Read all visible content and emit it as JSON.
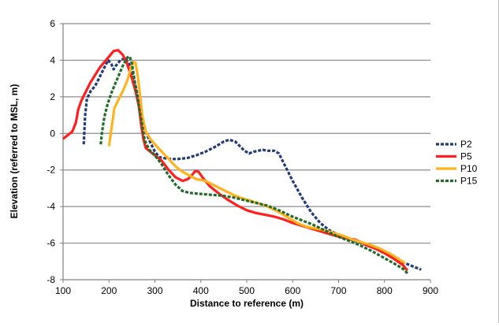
{
  "chart_data": {
    "type": "line",
    "title": "",
    "xlabel": "Distance to reference (m)",
    "ylabel": "Elevation (referred to MSL, m)",
    "xlim": [
      100,
      900
    ],
    "ylim": [
      -8,
      6
    ],
    "x_ticks": [
      "100",
      "200",
      "300",
      "400",
      "500",
      "600",
      "700",
      "800",
      "900"
    ],
    "y_ticks": [
      "-8",
      "-6",
      "-4",
      "-2",
      "0",
      "2",
      "4",
      "6"
    ],
    "grid": "horizontal",
    "legend_position": "right",
    "series": [
      {
        "name": "P2",
        "color": "#1f3a7a",
        "dash": "dashed",
        "points": [
          [
            145,
            -0.6
          ],
          [
            148,
            1.0
          ],
          [
            152,
            1.9
          ],
          [
            160,
            2.3
          ],
          [
            170,
            2.6
          ],
          [
            180,
            3.1
          ],
          [
            190,
            3.6
          ],
          [
            198,
            4.0
          ],
          [
            205,
            3.8
          ],
          [
            210,
            3.5
          ],
          [
            215,
            3.7
          ],
          [
            225,
            4.0
          ],
          [
            235,
            4.1
          ],
          [
            242,
            3.9
          ],
          [
            250,
            3.4
          ],
          [
            258,
            2.6
          ],
          [
            265,
            1.7
          ],
          [
            272,
            0.9
          ],
          [
            280,
            0.1
          ],
          [
            290,
            -0.5
          ],
          [
            300,
            -1.0
          ],
          [
            310,
            -1.3
          ],
          [
            330,
            -1.4
          ],
          [
            350,
            -1.4
          ],
          [
            370,
            -1.35
          ],
          [
            390,
            -1.2
          ],
          [
            410,
            -1.0
          ],
          [
            430,
            -0.75
          ],
          [
            450,
            -0.45
          ],
          [
            462,
            -0.35
          ],
          [
            475,
            -0.45
          ],
          [
            485,
            -0.7
          ],
          [
            495,
            -0.95
          ],
          [
            505,
            -1.1
          ],
          [
            515,
            -1.0
          ],
          [
            525,
            -0.95
          ],
          [
            535,
            -0.9
          ],
          [
            545,
            -0.95
          ],
          [
            560,
            -0.95
          ],
          [
            570,
            -1.1
          ],
          [
            580,
            -1.6
          ],
          [
            600,
            -2.6
          ],
          [
            620,
            -3.5
          ],
          [
            640,
            -4.3
          ],
          [
            660,
            -4.9
          ],
          [
            680,
            -5.3
          ],
          [
            700,
            -5.55
          ],
          [
            720,
            -5.75
          ],
          [
            740,
            -5.9
          ],
          [
            760,
            -6.1
          ],
          [
            780,
            -6.3
          ],
          [
            800,
            -6.55
          ],
          [
            820,
            -6.8
          ],
          [
            840,
            -7.05
          ],
          [
            860,
            -7.25
          ],
          [
            880,
            -7.45
          ]
        ]
      },
      {
        "name": "P5",
        "color": "#ff1f1f",
        "dash": "solid",
        "points": [
          [
            100,
            -0.3
          ],
          [
            110,
            -0.1
          ],
          [
            120,
            0.1
          ],
          [
            128,
            0.6
          ],
          [
            133,
            1.3
          ],
          [
            140,
            1.8
          ],
          [
            150,
            2.3
          ],
          [
            160,
            2.8
          ],
          [
            170,
            3.2
          ],
          [
            180,
            3.6
          ],
          [
            190,
            3.9
          ],
          [
            200,
            4.2
          ],
          [
            210,
            4.5
          ],
          [
            220,
            4.55
          ],
          [
            230,
            4.3
          ],
          [
            238,
            3.9
          ],
          [
            245,
            3.4
          ],
          [
            250,
            3.0
          ],
          [
            258,
            2.3
          ],
          [
            265,
            1.5
          ],
          [
            270,
            0.5
          ],
          [
            275,
            -0.3
          ],
          [
            280,
            -0.8
          ],
          [
            290,
            -1.0
          ],
          [
            300,
            -1.2
          ],
          [
            315,
            -1.5
          ],
          [
            330,
            -2.0
          ],
          [
            345,
            -2.4
          ],
          [
            360,
            -2.6
          ],
          [
            372,
            -2.5
          ],
          [
            380,
            -2.3
          ],
          [
            388,
            -2.05
          ],
          [
            395,
            -2.1
          ],
          [
            405,
            -2.45
          ],
          [
            420,
            -2.9
          ],
          [
            440,
            -3.3
          ],
          [
            460,
            -3.65
          ],
          [
            480,
            -3.95
          ],
          [
            500,
            -4.2
          ],
          [
            520,
            -4.35
          ],
          [
            540,
            -4.45
          ],
          [
            560,
            -4.55
          ],
          [
            580,
            -4.7
          ],
          [
            600,
            -4.9
          ],
          [
            620,
            -5.05
          ],
          [
            640,
            -5.2
          ],
          [
            660,
            -5.35
          ],
          [
            680,
            -5.5
          ],
          [
            700,
            -5.65
          ],
          [
            720,
            -5.75
          ],
          [
            735,
            -5.8
          ],
          [
            745,
            -5.9
          ],
          [
            760,
            -6.1
          ],
          [
            780,
            -6.3
          ],
          [
            800,
            -6.55
          ],
          [
            820,
            -6.85
          ],
          [
            840,
            -7.2
          ],
          [
            850,
            -7.5
          ]
        ]
      },
      {
        "name": "P10",
        "color": "#ffb31f",
        "dash": "solid",
        "points": [
          [
            200,
            -0.7
          ],
          [
            205,
            0.2
          ],
          [
            212,
            1.4
          ],
          [
            220,
            1.8
          ],
          [
            230,
            2.3
          ],
          [
            240,
            2.9
          ],
          [
            248,
            3.6
          ],
          [
            253,
            3.9
          ],
          [
            258,
            3.85
          ],
          [
            263,
            3.1
          ],
          [
            268,
            2.0
          ],
          [
            273,
            0.9
          ],
          [
            280,
            0.1
          ],
          [
            290,
            -0.3
          ],
          [
            300,
            -0.6
          ],
          [
            315,
            -1.0
          ],
          [
            330,
            -1.4
          ],
          [
            345,
            -1.8
          ],
          [
            360,
            -2.1
          ],
          [
            375,
            -2.3
          ],
          [
            390,
            -2.5
          ],
          [
            410,
            -2.6
          ],
          [
            430,
            -2.85
          ],
          [
            450,
            -3.1
          ],
          [
            470,
            -3.35
          ],
          [
            490,
            -3.55
          ],
          [
            510,
            -3.7
          ],
          [
            530,
            -3.85
          ],
          [
            550,
            -4.05
          ],
          [
            570,
            -4.3
          ],
          [
            590,
            -4.6
          ],
          [
            610,
            -4.9
          ],
          [
            630,
            -5.1
          ],
          [
            650,
            -5.2
          ],
          [
            670,
            -5.3
          ],
          [
            690,
            -5.45
          ],
          [
            710,
            -5.6
          ],
          [
            730,
            -5.8
          ],
          [
            750,
            -5.95
          ],
          [
            770,
            -6.1
          ],
          [
            790,
            -6.3
          ],
          [
            810,
            -6.55
          ],
          [
            830,
            -6.85
          ],
          [
            845,
            -7.1
          ]
        ]
      },
      {
        "name": "P15",
        "color": "#1f6b2a",
        "dash": "dashed",
        "points": [
          [
            182,
            -0.6
          ],
          [
            185,
            0.1
          ],
          [
            190,
            0.9
          ],
          [
            197,
            1.6
          ],
          [
            205,
            2.2
          ],
          [
            215,
            2.8
          ],
          [
            225,
            3.4
          ],
          [
            232,
            3.8
          ],
          [
            240,
            4.15
          ],
          [
            245,
            4.2
          ],
          [
            250,
            3.8
          ],
          [
            255,
            3.0
          ],
          [
            262,
            1.9
          ],
          [
            270,
            0.8
          ],
          [
            278,
            -0.4
          ],
          [
            288,
            -0.9
          ],
          [
            300,
            -1.2
          ],
          [
            315,
            -1.7
          ],
          [
            330,
            -2.3
          ],
          [
            345,
            -2.8
          ],
          [
            360,
            -3.15
          ],
          [
            375,
            -3.25
          ],
          [
            395,
            -3.3
          ],
          [
            420,
            -3.35
          ],
          [
            445,
            -3.4
          ],
          [
            470,
            -3.5
          ],
          [
            495,
            -3.65
          ],
          [
            520,
            -3.8
          ],
          [
            545,
            -3.95
          ],
          [
            570,
            -4.2
          ],
          [
            595,
            -4.5
          ],
          [
            620,
            -4.75
          ],
          [
            645,
            -5.0
          ],
          [
            670,
            -5.3
          ],
          [
            695,
            -5.6
          ],
          [
            720,
            -5.85
          ],
          [
            745,
            -6.1
          ],
          [
            770,
            -6.4
          ],
          [
            795,
            -6.75
          ],
          [
            820,
            -7.1
          ],
          [
            840,
            -7.4
          ],
          [
            850,
            -7.65
          ]
        ]
      }
    ]
  }
}
